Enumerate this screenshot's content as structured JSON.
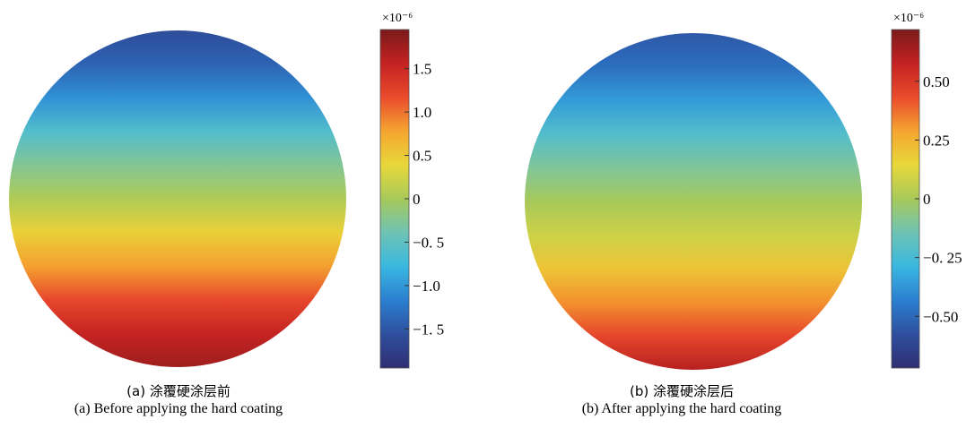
{
  "colormap": [
    "#2f2e72",
    "#2f4f9e",
    "#2b7fd0",
    "#3ab8e0",
    "#6ec3b4",
    "#a8c95a",
    "#e8d83a",
    "#f5a530",
    "#ea4a2c",
    "#c42222",
    "#7a1a1a"
  ],
  "chart_data": [
    {
      "type": "heatmap",
      "shape": "disk",
      "caption_cn": "(a) 涂覆硬涂层前",
      "caption_en": "(a) Before applying the hard coating",
      "colorbar": {
        "exponent_label": "×10⁻⁶",
        "min": -1.95,
        "max": 1.95,
        "ticks": [
          {
            "value": 1.5,
            "label": "1.5"
          },
          {
            "value": 1.0,
            "label": "1.0"
          },
          {
            "value": 0.5,
            "label": "0.5"
          },
          {
            "value": 0,
            "label": "0"
          },
          {
            "value": -0.5,
            "label": "−0. 5"
          },
          {
            "value": -1.0,
            "label": "−1.0"
          },
          {
            "value": -1.5,
            "label": "−1. 5"
          }
        ]
      },
      "field_profile": {
        "position_top_to_bottom": [
          0,
          0.1,
          0.2,
          0.3,
          0.4,
          0.5,
          0.6,
          0.7,
          0.8,
          0.9,
          1.0
        ],
        "value": [
          -1.6,
          -1.4,
          -1.05,
          -0.6,
          -0.25,
          0.05,
          0.45,
          0.8,
          1.2,
          1.55,
          1.75
        ]
      }
    },
    {
      "type": "heatmap",
      "shape": "disk",
      "caption_cn": "(b) 涂覆硬涂层后",
      "caption_en": "(b) After applying the hard coating",
      "colorbar": {
        "exponent_label": "×10⁻⁶",
        "min": -0.72,
        "max": 0.72,
        "ticks": [
          {
            "value": 0.5,
            "label": "0.50"
          },
          {
            "value": 0.25,
            "label": "0.25"
          },
          {
            "value": 0,
            "label": "0"
          },
          {
            "value": -0.25,
            "label": "−0. 25"
          },
          {
            "value": -0.5,
            "label": "−0.50"
          }
        ]
      },
      "field_profile": {
        "position_top_to_bottom": [
          0,
          0.1,
          0.2,
          0.3,
          0.4,
          0.5,
          0.6,
          0.7,
          0.8,
          0.9,
          1.0
        ],
        "value": [
          -0.55,
          -0.48,
          -0.36,
          -0.22,
          -0.1,
          0.0,
          0.08,
          0.2,
          0.32,
          0.45,
          0.6
        ]
      }
    }
  ]
}
